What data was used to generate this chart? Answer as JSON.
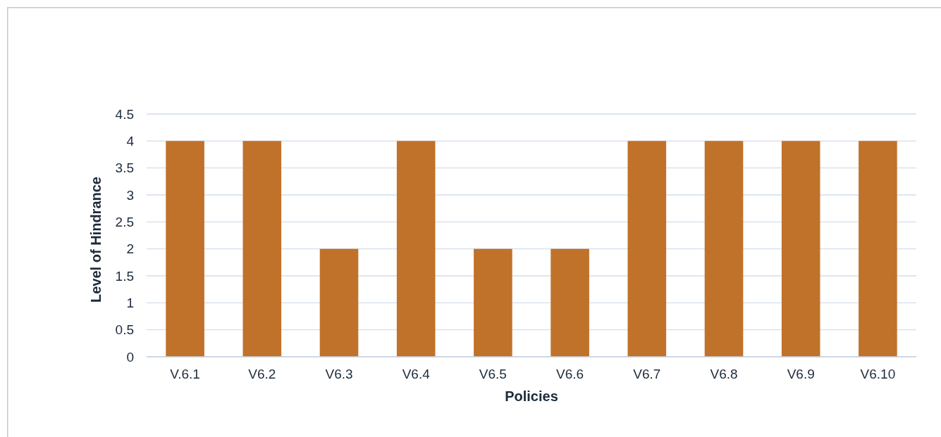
{
  "chart_data": {
    "type": "bar",
    "xlabel": "Policies",
    "ylabel": "Level of Hindrance",
    "categories": [
      "V.6.1",
      "V6.2",
      "V6.3",
      "V6.4",
      "V6.5",
      "V6.6",
      "V6.7",
      "V6.8",
      "V6.9",
      "V6.10"
    ],
    "values": [
      4,
      4,
      2,
      4,
      2,
      2,
      4,
      4,
      4,
      4
    ],
    "color": "#c0722a",
    "ylim": [
      0,
      4.5
    ],
    "yticks": [
      0,
      0.5,
      1,
      1.5,
      2,
      2.5,
      3,
      3.5,
      4,
      4.5
    ],
    "grid": "y"
  }
}
